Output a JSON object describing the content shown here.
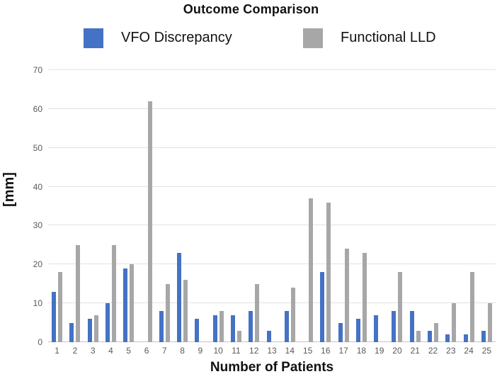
{
  "chart_data": {
    "type": "bar",
    "title": "Outcome Comparison",
    "categories": [
      "1",
      "2",
      "3",
      "4",
      "5",
      "6",
      "7",
      "8",
      "9",
      "10",
      "11",
      "12",
      "13",
      "14",
      "15",
      "16",
      "17",
      "18",
      "19",
      "20",
      "21",
      "22",
      "23",
      "24",
      "25"
    ],
    "series": [
      {
        "name": "VFO Discrepancy",
        "color": "#4472C4",
        "values": [
          13,
          5,
          6,
          10,
          19,
          0,
          8,
          23,
          6,
          7,
          7,
          8,
          3,
          8,
          0,
          18,
          5,
          6,
          7,
          8,
          8,
          3,
          2,
          2,
          3
        ]
      },
      {
        "name": "Functional LLD",
        "color": "#A7A7A7",
        "values": [
          18,
          25,
          7,
          25,
          20,
          62,
          15,
          16,
          0,
          8,
          3,
          15,
          0,
          14,
          37,
          36,
          24,
          23,
          0,
          18,
          3,
          5,
          10,
          18,
          10
        ]
      }
    ],
    "xlabel": "Number of Patients",
    "ylabel": "[mm]",
    "ylim": [
      0,
      70
    ],
    "ytick_step": 10,
    "yticks": [
      0,
      10,
      20,
      30,
      40,
      50,
      60,
      70
    ],
    "grid": true,
    "legend_position": "top",
    "colors": {
      "gridline": "#e2e2e2",
      "baseline": "#c6c6c6",
      "tick_text": "#595959",
      "title_text": "#111111"
    }
  }
}
